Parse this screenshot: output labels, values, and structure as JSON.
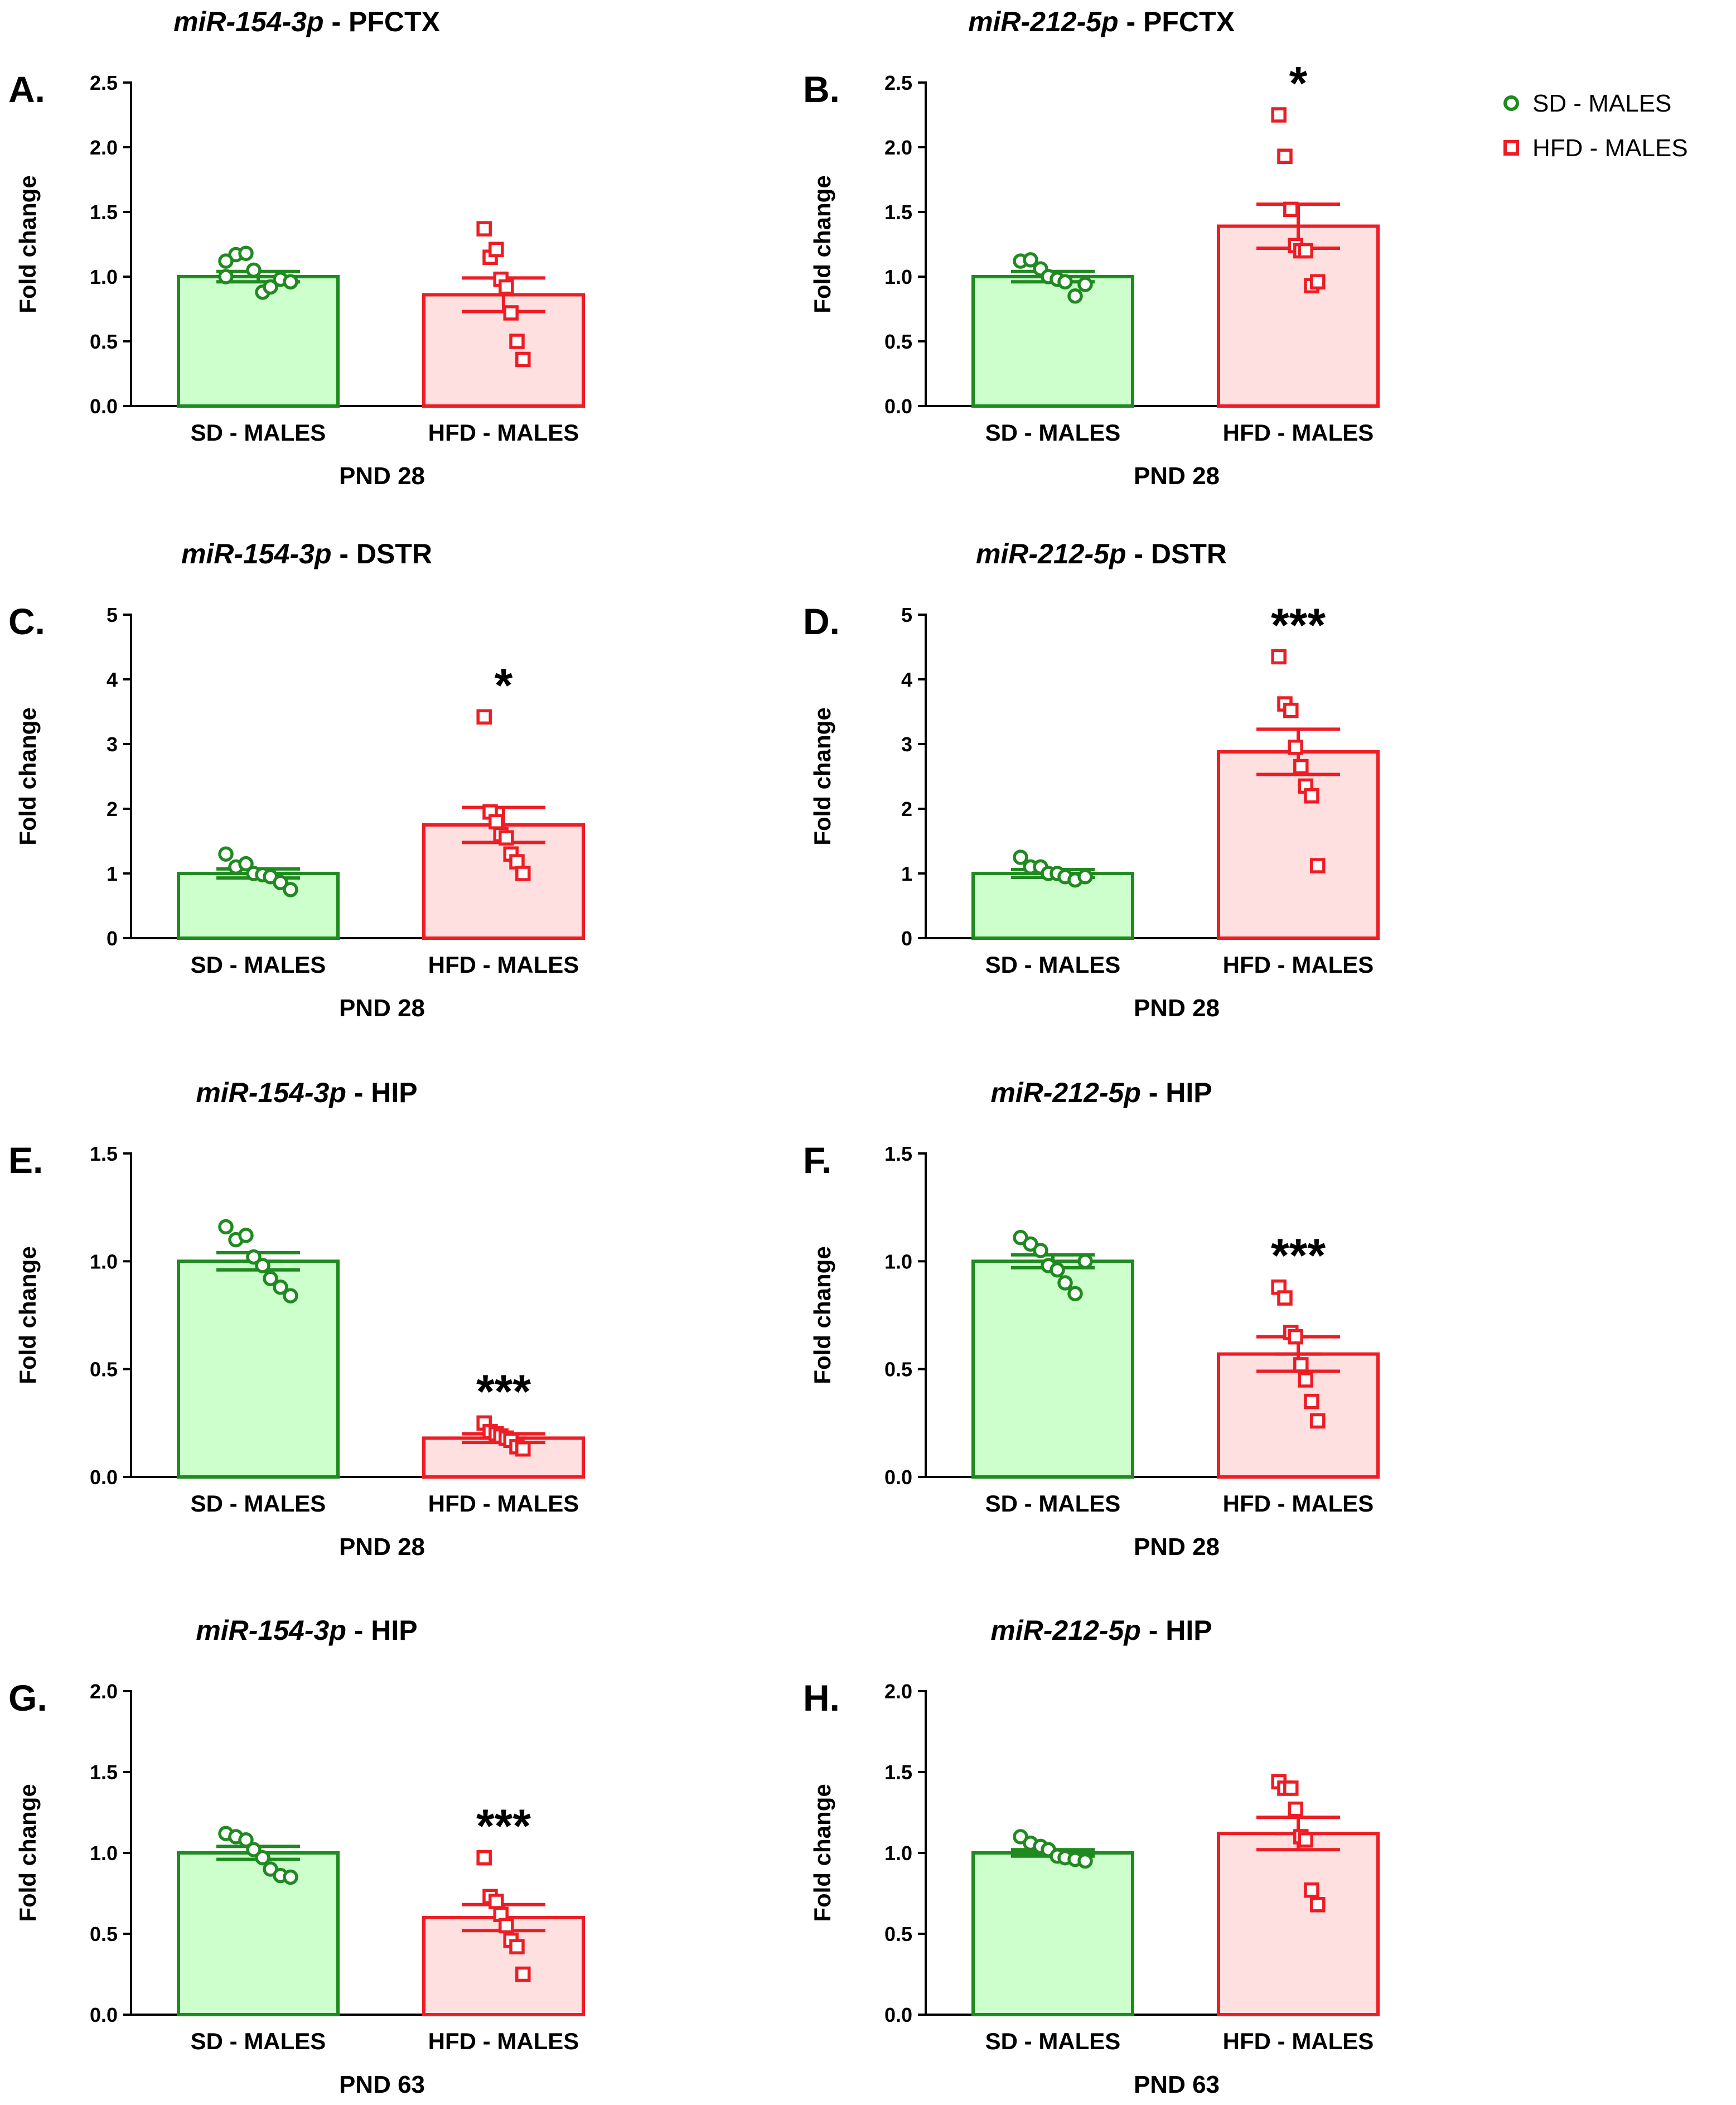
{
  "colors": {
    "sd_stroke": "#1f8a1f",
    "sd_fill": "#ccffcc",
    "hfd_stroke": "#ee1c24",
    "hfd_fill": "#ffe0e0"
  },
  "legend": {
    "items": [
      {
        "label": "SD - MALES",
        "series": "sd",
        "marker": "circle"
      },
      {
        "label": "HFD - MALES",
        "series": "hfd",
        "marker": "square"
      }
    ]
  },
  "chart_data": [
    {
      "id": "A",
      "type": "bar",
      "letter": "A.",
      "title_gene": "miR-154-3p",
      "title_region": " - PFCTX",
      "ylabel": "Fold change",
      "xlabel": "PND 28",
      "ylim": [
        0,
        2.5
      ],
      "yticks": [
        "0.0",
        "0.5",
        "1.0",
        "1.5",
        "2.0",
        "2.5"
      ],
      "ystep": 0.5,
      "categories": [
        "SD - MALES",
        "HFD - MALES"
      ],
      "series": [
        {
          "name": "SD - MALES",
          "mean": 1.0,
          "sem": 0.04,
          "points": [
            1.0,
            1.17,
            1.18,
            1.05,
            0.88,
            0.92,
            0.98,
            0.96,
            1.12
          ]
        },
        {
          "name": "HFD - MALES",
          "mean": 0.86,
          "sem": 0.13,
          "points": [
            1.37,
            1.15,
            1.21,
            0.98,
            0.92,
            0.72,
            0.5,
            0.36
          ]
        }
      ],
      "significance": [
        "",
        ""
      ]
    },
    {
      "id": "B",
      "type": "bar",
      "letter": "B.",
      "title_gene": "miR-212-5p",
      "title_region": " - PFCTX",
      "ylabel": "Fold change",
      "xlabel": "PND 28",
      "ylim": [
        0,
        2.5
      ],
      "yticks": [
        "0.0",
        "0.5",
        "1.0",
        "1.5",
        "2.0",
        "2.5"
      ],
      "ystep": 0.5,
      "categories": [
        "SD - MALES",
        "HFD - MALES"
      ],
      "series": [
        {
          "name": "SD - MALES",
          "mean": 1.0,
          "sem": 0.04,
          "points": [
            1.12,
            1.13,
            1.06,
            1.0,
            0.98,
            0.96,
            0.85,
            0.94
          ]
        },
        {
          "name": "HFD - MALES",
          "mean": 1.39,
          "sem": 0.17,
          "points": [
            2.25,
            1.93,
            1.52,
            1.24,
            1.2,
            1.2,
            0.93,
            0.96
          ]
        }
      ],
      "significance": [
        "",
        "*"
      ]
    },
    {
      "id": "C",
      "type": "bar",
      "letter": "C.",
      "title_gene": "miR-154-3p",
      "title_region": " - DSTR",
      "ylabel": "Fold change",
      "xlabel": "PND 28",
      "ylim": [
        0,
        5
      ],
      "yticks": [
        "0",
        "1",
        "2",
        "3",
        "4",
        "5"
      ],
      "ystep": 1,
      "categories": [
        "SD - MALES",
        "HFD - MALES"
      ],
      "series": [
        {
          "name": "SD - MALES",
          "mean": 1.0,
          "sem": 0.07,
          "points": [
            1.3,
            1.1,
            1.15,
            1.0,
            0.98,
            0.95,
            0.86,
            0.75
          ]
        },
        {
          "name": "HFD - MALES",
          "mean": 1.75,
          "sem": 0.27,
          "points": [
            3.42,
            1.95,
            1.8,
            1.6,
            1.55,
            1.3,
            1.18,
            1.0
          ]
        }
      ],
      "significance": [
        "",
        "*"
      ]
    },
    {
      "id": "D",
      "type": "bar",
      "letter": "D.",
      "title_gene": "miR-212-5p",
      "title_region": " - DSTR",
      "ylabel": "Fold change",
      "xlabel": "PND 28",
      "ylim": [
        0,
        5
      ],
      "yticks": [
        "0",
        "1",
        "2",
        "3",
        "4",
        "5"
      ],
      "ystep": 1,
      "categories": [
        "SD - MALES",
        "HFD - MALES"
      ],
      "series": [
        {
          "name": "SD - MALES",
          "mean": 1.0,
          "sem": 0.06,
          "points": [
            1.25,
            1.1,
            1.1,
            1.0,
            1.0,
            0.95,
            0.9,
            0.95
          ]
        },
        {
          "name": "HFD - MALES",
          "mean": 2.88,
          "sem": 0.35,
          "points": [
            4.35,
            3.62,
            3.52,
            2.95,
            2.65,
            2.35,
            2.2,
            1.12
          ]
        }
      ],
      "significance": [
        "",
        "***"
      ]
    },
    {
      "id": "E",
      "type": "bar",
      "letter": "E.",
      "title_gene": "miR-154-3p",
      "title_region": " - HIP",
      "ylabel": "Fold change",
      "xlabel": "PND 28",
      "ylim": [
        0,
        1.5
      ],
      "yticks": [
        "0.0",
        "0.5",
        "1.0",
        "1.5"
      ],
      "ystep": 0.5,
      "categories": [
        "SD - MALES",
        "HFD - MALES"
      ],
      "series": [
        {
          "name": "SD - MALES",
          "mean": 1.0,
          "sem": 0.04,
          "points": [
            1.16,
            1.1,
            1.12,
            1.02,
            0.98,
            0.92,
            0.88,
            0.84
          ]
        },
        {
          "name": "HFD - MALES",
          "mean": 0.18,
          "sem": 0.02,
          "points": [
            0.25,
            0.21,
            0.2,
            0.19,
            0.18,
            0.17,
            0.14,
            0.13
          ]
        }
      ],
      "significance": [
        "",
        "***"
      ]
    },
    {
      "id": "F",
      "type": "bar",
      "letter": "F.",
      "title_gene": "miR-212-5p",
      "title_region": " - HIP",
      "ylabel": "Fold change",
      "xlabel": "PND 28",
      "ylim": [
        0,
        1.5
      ],
      "yticks": [
        "0.0",
        "0.5",
        "1.0",
        "1.5"
      ],
      "ystep": 0.5,
      "categories": [
        "SD - MALES",
        "HFD - MALES"
      ],
      "series": [
        {
          "name": "SD - MALES",
          "mean": 1.0,
          "sem": 0.03,
          "points": [
            1.11,
            1.08,
            1.05,
            0.98,
            0.96,
            0.9,
            0.85,
            1.0
          ]
        },
        {
          "name": "HFD - MALES",
          "mean": 0.57,
          "sem": 0.08,
          "points": [
            0.88,
            0.83,
            0.67,
            0.65,
            0.52,
            0.45,
            0.35,
            0.26
          ]
        }
      ],
      "significance": [
        "",
        "***"
      ]
    },
    {
      "id": "G",
      "type": "bar",
      "letter": "G.",
      "title_gene": "miR-154-3p",
      "title_region": " - HIP",
      "ylabel": "Fold change",
      "xlabel": "PND 63",
      "ylim": [
        0,
        2.0
      ],
      "yticks": [
        "0.0",
        "0.5",
        "1.0",
        "1.5",
        "2.0"
      ],
      "ystep": 0.5,
      "categories": [
        "SD - MALES",
        "HFD - MALES"
      ],
      "series": [
        {
          "name": "SD - MALES",
          "mean": 1.0,
          "sem": 0.04,
          "points": [
            1.12,
            1.1,
            1.08,
            1.02,
            0.97,
            0.9,
            0.86,
            0.85
          ]
        },
        {
          "name": "HFD - MALES",
          "mean": 0.6,
          "sem": 0.08,
          "points": [
            0.97,
            0.73,
            0.7,
            0.62,
            0.55,
            0.46,
            0.42,
            0.25
          ]
        }
      ],
      "significance": [
        "",
        "***"
      ]
    },
    {
      "id": "H",
      "type": "bar",
      "letter": "H.",
      "title_gene": "miR-212-5p",
      "title_region": " - HIP",
      "ylabel": "Fold change",
      "xlabel": "PND 63",
      "ylim": [
        0,
        2.0
      ],
      "yticks": [
        "0.0",
        "0.5",
        "1.0",
        "1.5",
        "2.0"
      ],
      "ystep": 0.5,
      "categories": [
        "SD - MALES",
        "HFD - MALES"
      ],
      "series": [
        {
          "name": "SD - MALES",
          "mean": 1.0,
          "sem": 0.02,
          "points": [
            1.1,
            1.06,
            1.04,
            1.02,
            0.98,
            0.97,
            0.96,
            0.95
          ]
        },
        {
          "name": "HFD - MALES",
          "mean": 1.12,
          "sem": 0.1,
          "points": [
            1.44,
            1.4,
            1.4,
            1.27,
            1.1,
            1.08,
            0.77,
            0.68
          ]
        }
      ],
      "significance": [
        "",
        ""
      ]
    }
  ]
}
